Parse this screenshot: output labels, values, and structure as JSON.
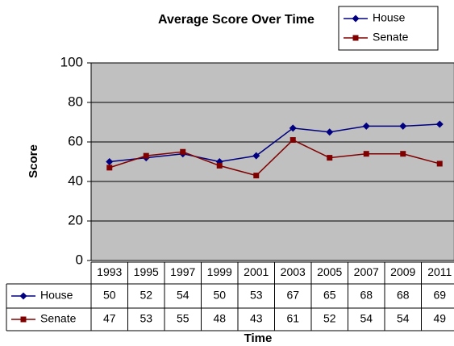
{
  "chart_data": {
    "type": "line",
    "title": "Average Score Over Time",
    "ylabel": "Score",
    "xlabel": "Time",
    "categories": [
      "1993",
      "1995",
      "1997",
      "1999",
      "2001",
      "2003",
      "2005",
      "2007",
      "2009",
      "2011"
    ],
    "series": [
      {
        "name": "House",
        "color": "#000080",
        "marker": "diamond",
        "values": [
          50,
          52,
          54,
          50,
          53,
          67,
          65,
          68,
          68,
          69
        ]
      },
      {
        "name": "Senate",
        "color": "#800000",
        "marker": "square",
        "values": [
          47,
          53,
          55,
          48,
          43,
          61,
          52,
          54,
          54,
          49
        ]
      }
    ],
    "ylim": [
      0,
      100
    ],
    "yticks": [
      0,
      20,
      40,
      60,
      80,
      100
    ],
    "grid": true,
    "legend": "top-right",
    "data_table": true
  }
}
